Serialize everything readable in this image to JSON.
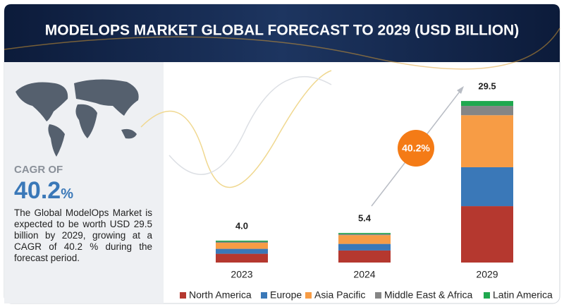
{
  "chart_data": {
    "type": "stacked-bar",
    "title": "MODELOPS MARKET GLOBAL FORECAST TO 2029 (USD BILLION)",
    "categories": [
      "2023",
      "2024",
      "2029"
    ],
    "series": [
      {
        "name": "North America",
        "color": "#b5382f",
        "values": [
          1.6,
          2.2,
          10.3
        ]
      },
      {
        "name": "Europe",
        "color": "#3a78b8",
        "values": [
          0.9,
          1.2,
          7.1
        ]
      },
      {
        "name": "Asia Pacific",
        "color": "#f79c45",
        "values": [
          1.1,
          1.6,
          9.5
        ]
      },
      {
        "name": "Middle East & Africa",
        "color": "#858585",
        "values": [
          0.2,
          0.2,
          1.7
        ]
      },
      {
        "name": "Latin America",
        "color": "#1fa84f",
        "values": [
          0.2,
          0.2,
          0.9
        ]
      }
    ],
    "totals": [
      4.0,
      5.4,
      29.5
    ],
    "total_labels": [
      "4.0",
      "5.4",
      "29.5"
    ],
    "annotation": "40.2%",
    "annotation_color": "#f47b16"
  },
  "side_panel": {
    "cagr_heading": "CAGR OF",
    "cagr_value": "40.2",
    "cagr_unit": "%",
    "description": "The Global ModelOps Market is expected to be worth USD 29.5 billion by 2029, growing at a CAGR of 40.2 % during the forecast period."
  }
}
